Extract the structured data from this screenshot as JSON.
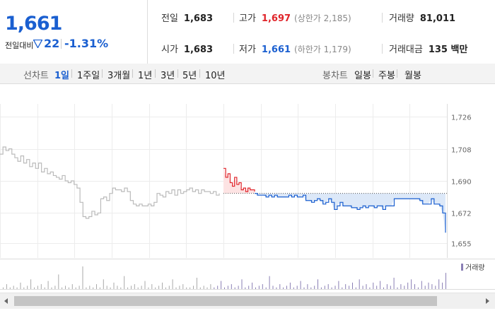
{
  "quote": {
    "price": "1,661",
    "change_label": "전일대비",
    "change_value": "22",
    "change_pct": "-1.31%",
    "prev_close": {
      "label": "전일",
      "value": "1,683"
    },
    "open": {
      "label": "시가",
      "value": "1,683"
    },
    "high": {
      "label": "고가",
      "value": "1,697",
      "limit": "(상한가 2,185)"
    },
    "low": {
      "label": "저가",
      "value": "1,661",
      "limit": "(하한가 1,179)"
    },
    "volume": {
      "label": "거래량",
      "value": "81,011"
    },
    "turnover": {
      "label": "거래대금",
      "value": "135 백만"
    }
  },
  "toolbar": {
    "line_chart_label": "선차트",
    "periods": [
      "1일",
      "1주일",
      "3개월",
      "1년",
      "3년",
      "5년",
      "10년"
    ],
    "active_period": "1일",
    "candle_chart_label": "봉차트",
    "candles": [
      "일봉",
      "주봉",
      "월봉"
    ]
  },
  "colors": {
    "up": "#e0242a",
    "down": "#1a5fd0",
    "prev_day": "#bbbbbb",
    "fill_down": "#dce8f8",
    "fill_up": "#fde3e3",
    "volume_bar": "#8a7fb5"
  },
  "chart_data": {
    "type": "line",
    "ylim": [
      1650,
      1730
    ],
    "yticks": [
      "1,726",
      "1,708",
      "1,690",
      "1,672",
      "1,655"
    ],
    "ytick_values": [
      1726,
      1708,
      1690,
      1672,
      1655
    ],
    "reference_price": 1683,
    "volume_label": "거래량",
    "series": [
      {
        "values": [
          1705,
          1709,
          1707,
          1708,
          1705,
          1703,
          1701,
          1704,
          1700,
          1702,
          1698,
          1700,
          1697,
          1700,
          1695,
          1697,
          1694,
          1695,
          1693,
          1692,
          1691,
          1693,
          1690,
          1689,
          1690,
          1688,
          1686,
          1678,
          1670,
          1669,
          1670,
          1673,
          1671,
          1672,
          1680,
          1681,
          1679,
          1683,
          1686,
          1685,
          1685,
          1684,
          1686,
          1684,
          1679,
          1677,
          1676,
          1677,
          1676,
          1676,
          1677,
          1676,
          1678,
          1683,
          1682,
          1681,
          1684,
          1683,
          1685,
          1682,
          1685,
          1683,
          1684,
          1685,
          1686,
          1684,
          1685,
          1683,
          1685,
          1684,
          1684,
          1683,
          1684,
          1682,
          1683
        ]
      },
      {
        "values": [
          1697,
          1692,
          1694,
          1689,
          1687,
          1692,
          1688,
          1689,
          1685,
          1686,
          1684,
          1686,
          1685,
          1685,
          1684
        ]
      },
      {
        "values": [
          1683,
          1682,
          1682,
          1682,
          1681,
          1682,
          1681,
          1682,
          1681,
          1681,
          1681,
          1681,
          1682,
          1681,
          1682,
          1681,
          1681,
          1682,
          1679,
          1679,
          1678,
          1679,
          1680,
          1679,
          1677,
          1678,
          1680,
          1678,
          1674,
          1676,
          1678,
          1676,
          1676,
          1676,
          1675,
          1675,
          1674,
          1675,
          1676,
          1675,
          1676,
          1676,
          1675,
          1676,
          1676,
          1674,
          1676,
          1676,
          1676,
          1680,
          1680,
          1680,
          1680,
          1680,
          1680,
          1680,
          1680,
          1680,
          1679,
          1677,
          1677,
          1677,
          1680,
          1677,
          1677,
          1676,
          1672,
          1661
        ]
      }
    ],
    "volume": [
      1,
      3,
      1,
      2,
      1,
      4,
      1,
      2,
      6,
      1,
      2,
      3,
      1,
      5,
      1,
      2,
      9,
      1,
      2,
      1,
      3,
      1,
      2,
      14,
      1,
      2,
      1,
      3,
      1,
      6,
      2,
      1,
      4,
      2,
      1,
      8,
      1,
      2,
      3,
      1,
      2,
      5,
      1,
      3,
      1,
      2,
      4,
      1,
      2,
      6,
      1,
      2,
      3,
      1,
      1,
      2,
      7,
      1,
      2,
      1,
      3,
      1,
      2,
      5,
      1,
      2,
      3,
      1,
      2,
      6,
      1,
      2,
      4,
      1,
      2,
      3,
      1,
      8,
      2,
      1,
      3,
      1,
      2,
      4,
      1,
      2,
      5,
      1,
      3,
      1,
      2,
      6,
      1,
      2,
      3,
      1,
      2,
      5,
      1,
      3,
      2,
      4,
      1,
      6,
      2,
      3,
      1,
      4,
      2,
      5,
      1,
      3,
      2,
      7,
      1,
      3,
      2,
      4,
      6,
      3,
      1,
      5,
      2,
      4,
      3,
      2,
      6,
      4,
      10
    ]
  }
}
